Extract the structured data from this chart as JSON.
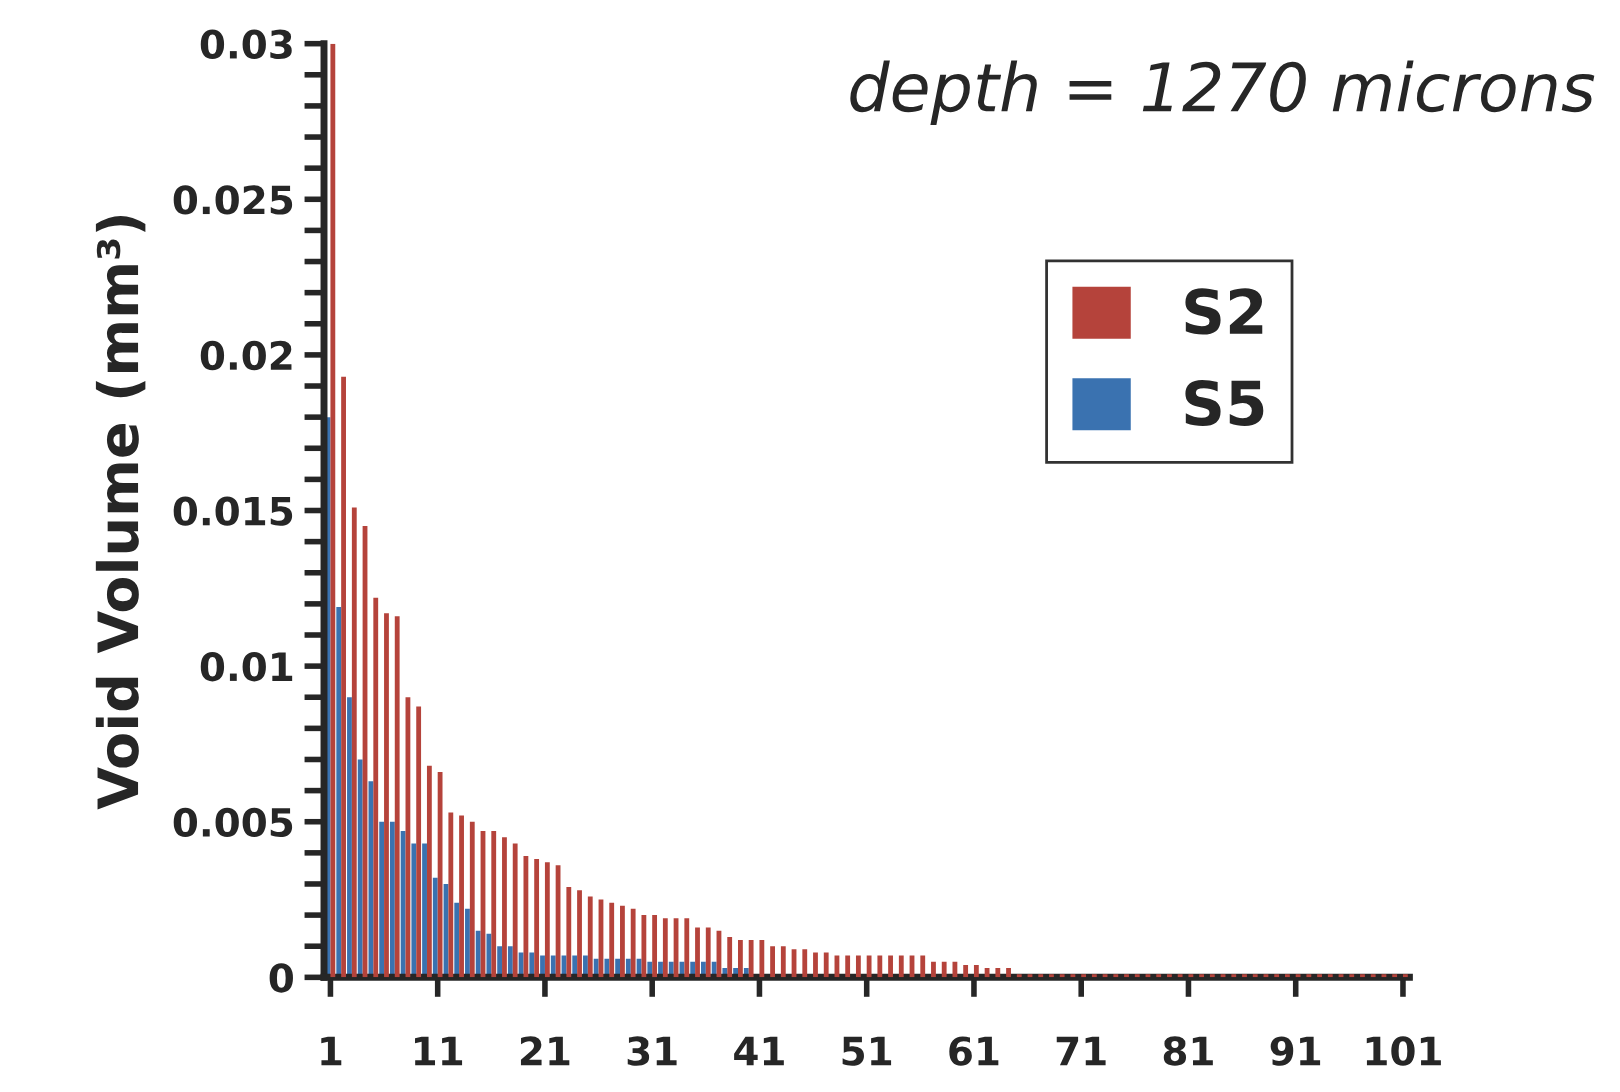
{
  "chart_data": {
    "type": "bar",
    "title": "depth = 1270 microns",
    "ylabel": "Void Volume (mm³)",
    "categories": [
      "1",
      null,
      null,
      null,
      null,
      null,
      null,
      null,
      null,
      null,
      "11",
      null,
      null,
      null,
      null,
      null,
      null,
      null,
      null,
      null,
      "21",
      null,
      null,
      null,
      null,
      null,
      null,
      null,
      null,
      null,
      "31",
      null,
      null,
      null,
      null,
      null,
      null,
      null,
      null,
      null,
      "41",
      null,
      null,
      null,
      null,
      null,
      null,
      null,
      null,
      null,
      "51",
      null,
      null,
      null,
      null,
      null,
      null,
      null,
      null,
      null,
      "61",
      null,
      null,
      null,
      null,
      null,
      null,
      null,
      null,
      null,
      "71",
      null,
      null,
      null,
      null,
      null,
      null,
      null,
      null,
      null,
      "81",
      null,
      null,
      null,
      null,
      null,
      null,
      null,
      null,
      null,
      "91",
      null,
      null,
      null,
      null,
      null,
      null,
      null,
      null,
      null,
      "101"
    ],
    "series": [
      {
        "name": "S2",
        "color": "#b5433b",
        "values": [
          0.03,
          0.0193,
          0.0151,
          0.0145,
          0.0122,
          0.0117,
          0.0116,
          0.009,
          0.0087,
          0.0068,
          0.0066,
          0.0053,
          0.0052,
          0.005,
          0.0047,
          0.0047,
          0.0045,
          0.0043,
          0.0039,
          0.0038,
          0.0037,
          0.0036,
          0.0029,
          0.0028,
          0.0026,
          0.0025,
          0.0024,
          0.0023,
          0.0022,
          0.002,
          0.002,
          0.0019,
          0.0019,
          0.0019,
          0.0016,
          0.0016,
          0.0015,
          0.0013,
          0.0012,
          0.0012,
          0.0012,
          0.001,
          0.001,
          0.0009,
          0.0009,
          0.0008,
          0.0008,
          0.0007,
          0.0007,
          0.0007,
          0.0007,
          0.0007,
          0.0007,
          0.0007,
          0.0007,
          0.0007,
          0.0005,
          0.0005,
          0.0005,
          0.0004,
          0.0004,
          0.0003,
          0.0003,
          0.0003,
          0.0001,
          0.0001,
          0.0001,
          0.0001,
          0.0001,
          0.0001,
          0.0001,
          0.0001,
          0.0001,
          0.0001,
          0.0001,
          0.0001,
          0.0001,
          0.0001,
          0.0001,
          0.0001,
          0.0001,
          0.0001,
          0.0001,
          0.0001,
          0.0001,
          0.0001,
          0.0001,
          0.0001,
          0.0001,
          0.0001,
          0.0001,
          0.0001,
          0.0001,
          0.0001,
          0.0001,
          0.0001,
          0.0001,
          0.0001,
          0.0001,
          0.0001,
          0.0001
        ]
      },
      {
        "name": "S5",
        "color": "#3a72b0",
        "values": [
          0.018,
          0.0119,
          0.009,
          0.007,
          0.0063,
          0.005,
          0.005,
          0.0047,
          0.0043,
          0.0043,
          0.0032,
          0.003,
          0.0024,
          0.0022,
          0.0015,
          0.0014,
          0.001,
          0.001,
          0.0008,
          0.0008,
          0.0007,
          0.0007,
          0.0007,
          0.0007,
          0.0007,
          0.0006,
          0.0006,
          0.0006,
          0.0006,
          0.0006,
          0.0005,
          0.0005,
          0.0005,
          0.0005,
          0.0005,
          0.0005,
          0.0005,
          0.0003,
          0.0003,
          0.0003,
          0,
          0,
          0,
          0,
          0,
          0,
          0,
          0,
          0,
          0,
          0,
          0,
          0,
          0,
          0,
          0,
          0,
          0,
          0,
          0,
          0,
          0,
          0,
          0,
          0,
          0,
          0,
          0,
          0,
          0,
          0,
          0,
          0,
          0,
          0,
          0,
          0,
          0,
          0,
          0,
          0,
          0,
          0,
          0,
          0,
          0,
          0,
          0,
          0,
          0,
          0,
          0,
          0,
          0,
          0,
          0,
          0,
          0,
          0,
          0,
          0
        ]
      }
    ],
    "ylim": [
      0,
      0.03
    ],
    "yticks": [
      0,
      {
        "value": 0.001,
        "label": null
      },
      {
        "value": 0.002,
        "label": null
      },
      {
        "value": 0.003,
        "label": null
      },
      {
        "value": 0.004,
        "label": null
      },
      0.005,
      {
        "value": 0.006,
        "label": null
      },
      {
        "value": 0.007,
        "label": null
      },
      {
        "value": 0.008,
        "label": null
      },
      {
        "value": 0.009,
        "label": null
      },
      0.01,
      {
        "value": 0.011,
        "label": null
      },
      {
        "value": 0.012,
        "label": null
      },
      {
        "value": 0.013,
        "label": null
      },
      {
        "value": 0.014,
        "label": null
      },
      0.015,
      {
        "value": 0.016,
        "label": null
      },
      {
        "value": 0.017,
        "label": null
      },
      {
        "value": 0.018,
        "label": null
      },
      {
        "value": 0.019,
        "label": null
      },
      0.02,
      {
        "value": 0.021,
        "label": null
      },
      {
        "value": 0.022,
        "label": null
      },
      {
        "value": 0.023,
        "label": null
      },
      {
        "value": 0.024,
        "label": null
      },
      0.025,
      {
        "value": 0.026,
        "label": null
      },
      {
        "value": 0.027,
        "label": null
      },
      {
        "value": 0.028,
        "label": null
      },
      {
        "value": 0.029,
        "label": null
      },
      0.03
    ],
    "grid": false,
    "legend": "top right"
  }
}
